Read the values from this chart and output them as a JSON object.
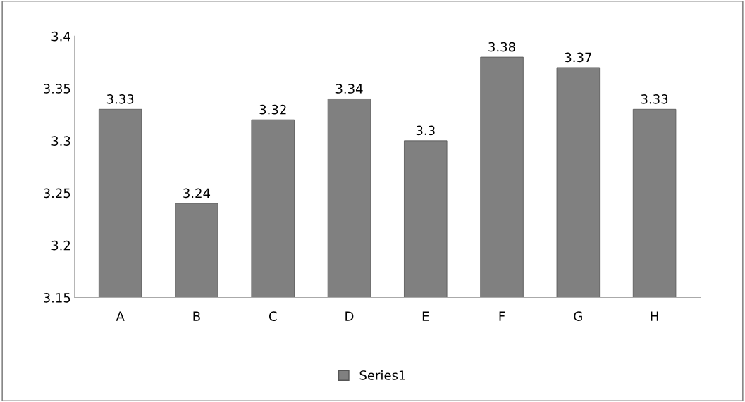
{
  "chart_data": {
    "type": "bar",
    "categories": [
      "A",
      "B",
      "C",
      "D",
      "E",
      "F",
      "G",
      "H"
    ],
    "series": [
      {
        "name": "Series1",
        "color": "#808080",
        "values": [
          3.33,
          3.24,
          3.32,
          3.34,
          3.3,
          3.38,
          3.37,
          3.33
        ]
      }
    ],
    "ylim": [
      3.15,
      3.4
    ],
    "yticks": [
      3.15,
      3.2,
      3.25,
      3.3,
      3.35,
      3.4
    ],
    "data_labels": true,
    "legend": "bottom",
    "grid": false
  }
}
